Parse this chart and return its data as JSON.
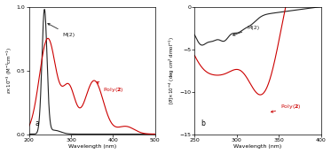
{
  "panel_a": {
    "xlim": [
      200,
      500
    ],
    "ylim": [
      0,
      1.0
    ],
    "xlabel": "Wavelength (nm)",
    "ylabel": "$\\varepsilon$$\\times$10$^{-3}$ (M$^{-1}$cm$^{-1}$)",
    "label": "a",
    "m2_color": "#222222",
    "poly2_color": "#cc0000",
    "m2_label": "M(2)",
    "poly2_label": "Poly(2)",
    "yticks": [
      0.0,
      0.5,
      1.0
    ],
    "xticks": [
      200,
      300,
      400,
      500
    ]
  },
  "panel_b": {
    "xlim": [
      250,
      400
    ],
    "ylim": [
      -15,
      0
    ],
    "xlabel": "Wavelength (nm)",
    "ylabel": "$[\\theta]$$\\times$10$^{-4}$ (deg cm$^{2}$ dmol$^{-1}$)",
    "label": "b",
    "m2_color": "#222222",
    "poly2_color": "#cc0000",
    "m2_label": "M(2)",
    "poly2_label": "Poly(2)",
    "yticks": [
      0,
      -5,
      -10,
      -15
    ],
    "xticks": [
      250,
      300,
      350,
      400
    ]
  }
}
